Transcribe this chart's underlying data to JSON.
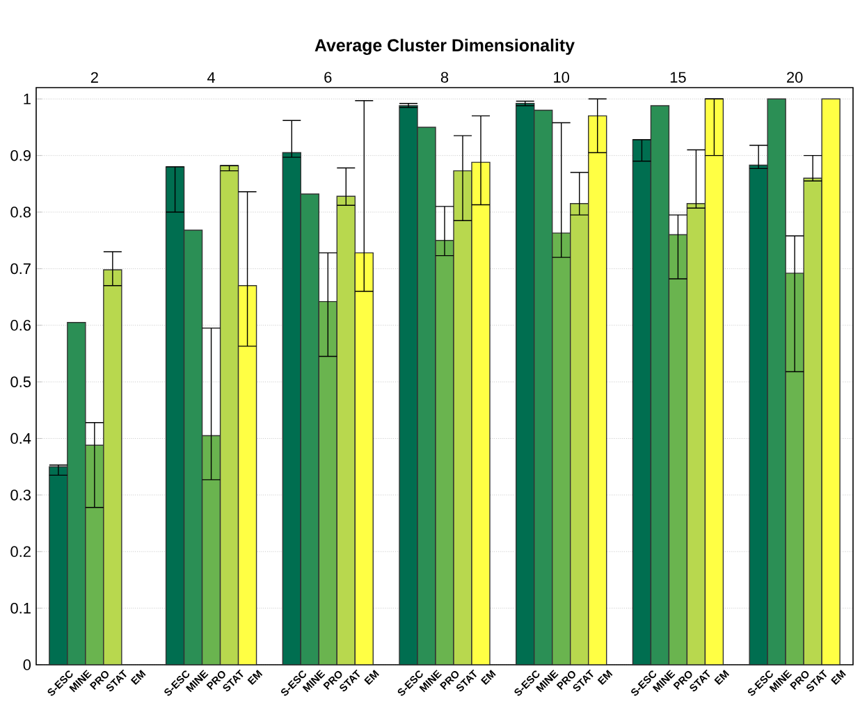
{
  "chart_data": {
    "type": "bar",
    "title": "Average Cluster Dimensionality",
    "categories": [
      "2",
      "4",
      "6",
      "8",
      "10",
      "15",
      "20"
    ],
    "series": [
      {
        "name": "S-ESC",
        "color": "#006e50",
        "values": [
          0.35,
          0.88,
          0.905,
          0.988,
          0.992,
          0.928,
          0.883
        ],
        "errors": [
          [
            0.335,
            0.353
          ],
          [
            0.8,
            0.88
          ],
          [
            0.897,
            0.962
          ],
          [
            0.985,
            0.992
          ],
          [
            0.988,
            0.996
          ],
          [
            0.89,
            0.928
          ],
          [
            0.877,
            0.918
          ]
        ]
      },
      {
        "name": "MINE",
        "color": "#2b8f55",
        "values": [
          0.605,
          0.768,
          0.832,
          0.95,
          0.98,
          0.988,
          1.0
        ],
        "errors": [
          null,
          null,
          null,
          null,
          null,
          null,
          null
        ]
      },
      {
        "name": "PRO",
        "color": "#6ab44f",
        "values": [
          0.388,
          0.405,
          0.642,
          0.75,
          0.763,
          0.76,
          0.692
        ],
        "errors": [
          [
            0.278,
            0.428
          ],
          [
            0.327,
            0.595
          ],
          [
            0.545,
            0.728
          ],
          [
            0.723,
            0.81
          ],
          [
            0.72,
            0.958
          ],
          [
            0.682,
            0.795
          ],
          [
            0.518,
            0.758
          ]
        ]
      },
      {
        "name": "STAT",
        "color": "#b8d84e",
        "values": [
          0.698,
          0.882,
          0.828,
          0.873,
          0.815,
          0.815,
          0.86
        ],
        "errors": [
          [
            0.67,
            0.73
          ],
          [
            0.873,
            0.882
          ],
          [
            0.812,
            0.878
          ],
          [
            0.785,
            0.935
          ],
          [
            0.795,
            0.87
          ],
          [
            0.807,
            0.91
          ],
          [
            0.855,
            0.9
          ]
        ]
      },
      {
        "name": "EM",
        "color": "#ffff44",
        "values": [
          null,
          0.67,
          0.728,
          0.888,
          0.97,
          1.0,
          1.0
        ],
        "errors": [
          null,
          [
            0.563,
            0.836
          ],
          [
            0.66,
            0.997
          ],
          [
            0.813,
            0.97
          ],
          [
            0.905,
            1.0
          ],
          [
            0.9,
            1.0
          ],
          null
        ]
      }
    ],
    "ylim": [
      0,
      1.02
    ],
    "yticks": [
      0,
      0.1,
      0.2,
      0.3,
      0.4,
      0.5,
      0.6,
      0.7,
      0.8,
      0.9,
      1
    ],
    "grid": "y"
  }
}
